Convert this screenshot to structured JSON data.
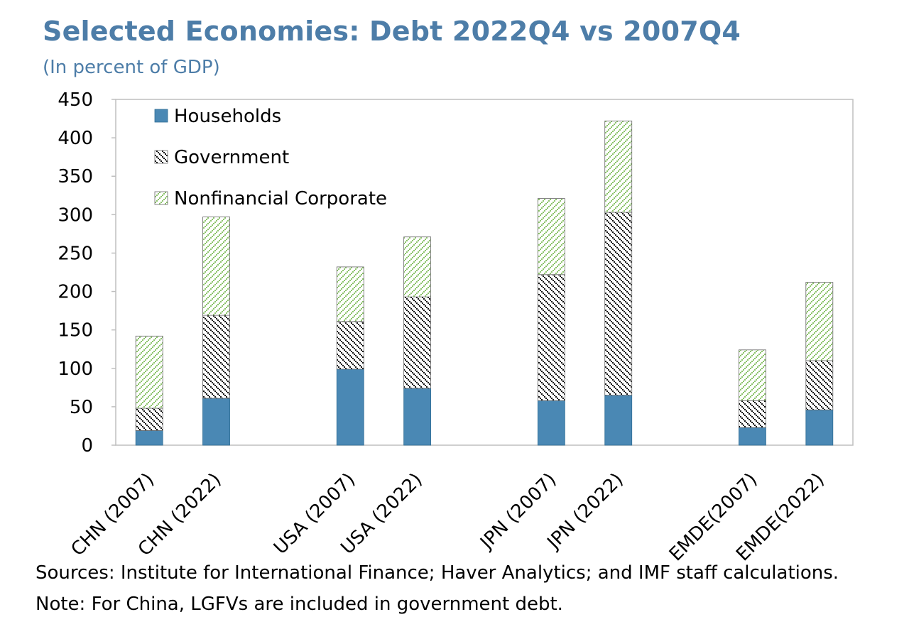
{
  "header": {
    "title": "Selected Economies: Debt 2022Q4 vs 2007Q4",
    "subtitle": "(In percent of GDP)"
  },
  "footer": {
    "sources": "Sources: Institute for International Finance; Haver Analytics; and IMF staff calculations.",
    "note": "Note: For China, LGFVs are included in government debt."
  },
  "colors": {
    "households": "#4a88b4",
    "government": "#000000",
    "nonfinancial_corporate": "#8cc36b",
    "axis": "#bfbfbf"
  },
  "chart_data": {
    "type": "bar",
    "stacked": true,
    "categories": [
      "CHN (2007)",
      "CHN (2022)",
      "USA (2007)",
      "USA (2022)",
      "JPN (2007)",
      "JPN (2022)",
      "EMDE(2007)",
      "EMDE(2022)"
    ],
    "groups": [
      [
        "CHN (2007)",
        "CHN (2022)"
      ],
      [
        "USA (2007)",
        "USA (2022)"
      ],
      [
        "JPN (2007)",
        "JPN (2022)"
      ],
      [
        "EMDE(2007)",
        "EMDE(2022)"
      ]
    ],
    "series": [
      {
        "name": "Households",
        "values": [
          19,
          61,
          99,
          74,
          58,
          65,
          23,
          46
        ]
      },
      {
        "name": "Government",
        "values": [
          29,
          108,
          62,
          119,
          164,
          238,
          35,
          64
        ]
      },
      {
        "name": "Nonfinancial Corporate",
        "values": [
          94,
          128,
          71,
          78,
          99,
          119,
          66,
          102
        ]
      }
    ],
    "ylim": [
      0,
      450
    ],
    "yticks": [
      0,
      50,
      100,
      150,
      200,
      250,
      300,
      350,
      400,
      450
    ],
    "legend_position": "top-left",
    "grid": false
  }
}
